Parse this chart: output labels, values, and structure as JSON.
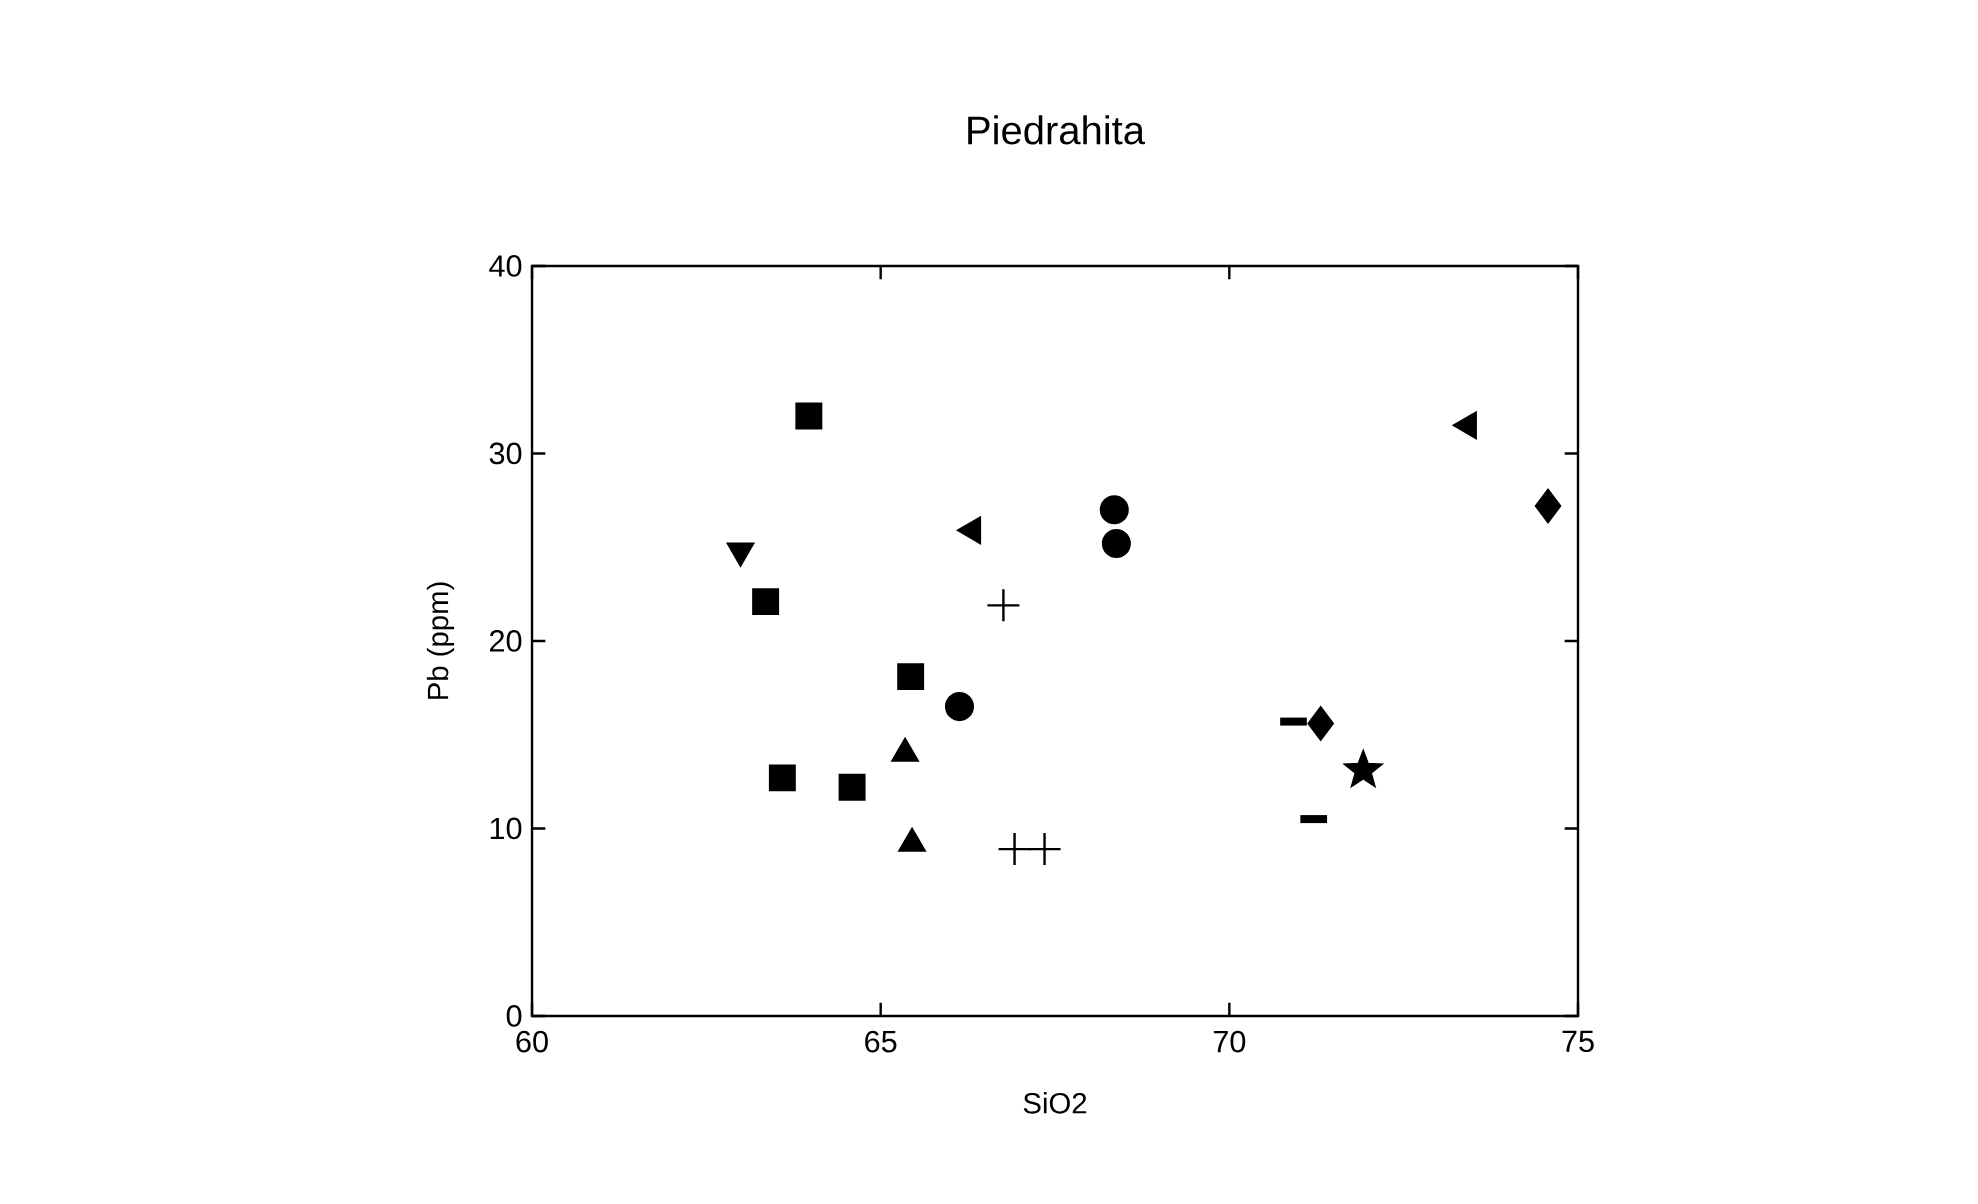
{
  "chart_data": {
    "type": "scatter",
    "title": "Piedrahita",
    "xlabel": "SiO2",
    "ylabel": "Pb (ppm)",
    "xlim": [
      60,
      75
    ],
    "ylim": [
      0,
      40
    ],
    "xticks": [
      60,
      65,
      70,
      75
    ],
    "yticks": [
      0,
      10,
      20,
      30,
      40
    ],
    "grid": false,
    "series": [
      {
        "color": "#000000",
        "marker": "square",
        "x": [
          63.97,
          63.35,
          65.43,
          63.59,
          64.59
        ],
        "values": [
          32.0,
          22.1,
          18.1,
          12.7,
          12.2
        ]
      },
      {
        "color": "#000000",
        "marker": "triangle down",
        "x": [
          62.99
        ],
        "values": [
          24.8
        ]
      },
      {
        "color": "#000000",
        "marker": "triangle",
        "x": [
          65.35,
          65.45
        ],
        "values": [
          14.0,
          9.2
        ]
      },
      {
        "color": "#000000",
        "marker": "circle",
        "x": [
          66.13,
          68.35
        ],
        "values": [
          16.5,
          27.0
        ]
      },
      {
        "color": "#000000",
        "marker": "circle",
        "x": [
          68.38
        ],
        "values": [
          25.2
        ]
      },
      {
        "color": "#000000",
        "marker": "triangle left",
        "x": [
          66.32,
          73.43
        ],
        "values": [
          25.9,
          31.5
        ]
      },
      {
        "color": "#000000",
        "marker": "cross",
        "x": [
          66.76,
          66.92,
          67.35
        ],
        "values": [
          21.9,
          8.9,
          8.9
        ]
      },
      {
        "color": "#000000",
        "marker": "diamond",
        "x": [
          71.31,
          74.57
        ],
        "values": [
          15.6,
          27.2
        ]
      },
      {
        "color": "#000000",
        "x": [
          70.92,
          71.21
        ],
        "values": [
          15.7,
          10.5
        ]
      },
      {
        "color": "#000000",
        "marker": "star",
        "x": [
          71.92
        ],
        "values": [
          13.1
        ]
      }
    ]
  }
}
